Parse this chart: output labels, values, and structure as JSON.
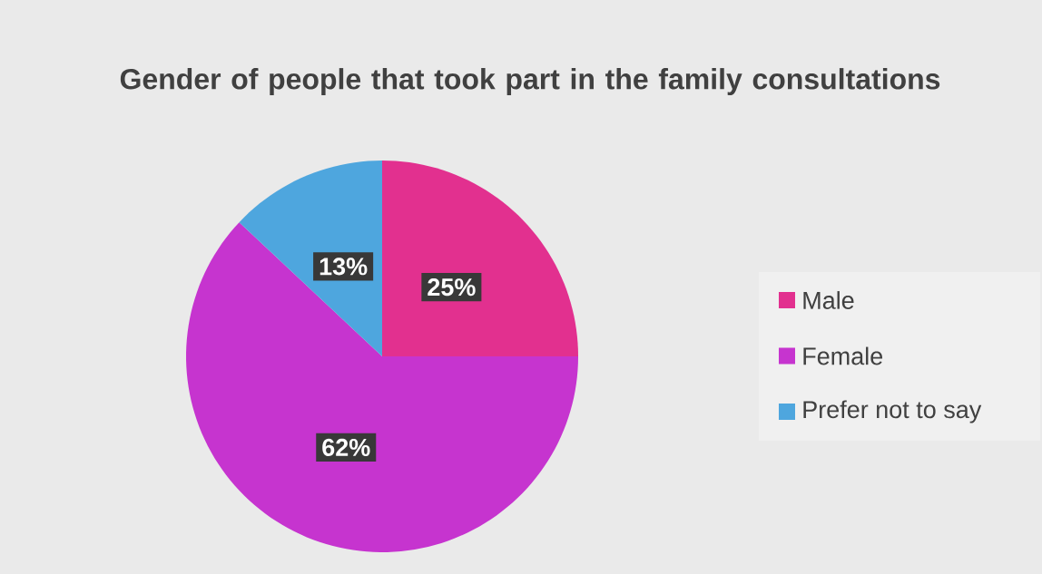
{
  "chart_data": {
    "type": "pie",
    "title": "Gender of people that took part in the family consultations",
    "categories": [
      "Male",
      "Female",
      "Prefer not to say"
    ],
    "values": [
      25,
      62,
      13
    ],
    "value_labels": [
      "25%",
      "62%",
      "13%"
    ],
    "colors": [
      "#e2308f",
      "#c634cf",
      "#4ea6de"
    ],
    "legend": "right"
  }
}
